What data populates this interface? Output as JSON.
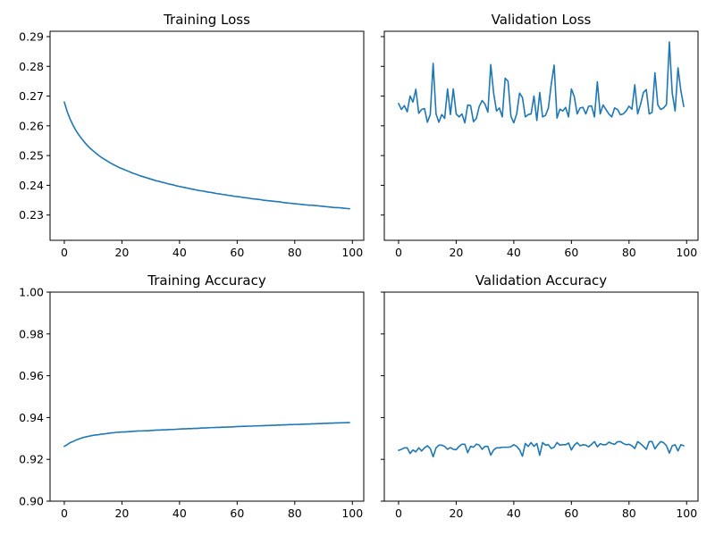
{
  "colors": {
    "line": "#1f77b4",
    "axes": "#000000",
    "background": "#ffffff"
  },
  "chart_data": [
    {
      "type": "line",
      "title": "Training Loss",
      "xlabel": "",
      "ylabel": "",
      "xlim": [
        -4.95,
        103.95
      ],
      "ylim": [
        0.2215,
        0.2918
      ],
      "xticks": [
        0,
        20,
        40,
        60,
        80,
        100
      ],
      "yticks": [
        0.23,
        0.24,
        0.25,
        0.26,
        0.27,
        0.28,
        0.29
      ],
      "grid": false,
      "x": [
        0,
        1,
        2,
        3,
        4,
        5,
        6,
        7,
        8,
        9,
        10,
        11,
        12,
        13,
        14,
        15,
        16,
        17,
        18,
        19,
        20,
        21,
        22,
        23,
        24,
        25,
        26,
        27,
        28,
        29,
        30,
        31,
        32,
        33,
        34,
        35,
        36,
        37,
        38,
        39,
        40,
        41,
        42,
        43,
        44,
        45,
        46,
        47,
        48,
        49,
        50,
        51,
        52,
        53,
        54,
        55,
        56,
        57,
        58,
        59,
        60,
        61,
        62,
        63,
        64,
        65,
        66,
        67,
        68,
        69,
        70,
        71,
        72,
        73,
        74,
        75,
        76,
        77,
        78,
        79,
        80,
        81,
        82,
        83,
        84,
        85,
        86,
        87,
        88,
        89,
        90,
        91,
        92,
        93,
        94,
        95,
        96,
        97,
        98,
        99
      ],
      "series": [
        {
          "values": [
            0.268,
            0.2648,
            0.2623,
            0.2603,
            0.2585,
            0.257,
            0.2557,
            0.2545,
            0.2534,
            0.2524,
            0.2516,
            0.2508,
            0.25,
            0.2493,
            0.2487,
            0.2481,
            0.2475,
            0.247,
            0.2465,
            0.246,
            0.2456,
            0.2452,
            0.2448,
            0.2444,
            0.244,
            0.2437,
            0.2433,
            0.243,
            0.2427,
            0.2424,
            0.2421,
            0.2418,
            0.2415,
            0.2413,
            0.241,
            0.2408,
            0.2405,
            0.2403,
            0.2401,
            0.2398,
            0.2396,
            0.2394,
            0.2392,
            0.239,
            0.2388,
            0.2386,
            0.2384,
            0.2382,
            0.2381,
            0.2379,
            0.2377,
            0.2376,
            0.2374,
            0.2372,
            0.2371,
            0.2369,
            0.2368,
            0.2366,
            0.2365,
            0.2363,
            0.2362,
            0.2361,
            0.2359,
            0.2358,
            0.2357,
            0.2355,
            0.2354,
            0.2353,
            0.2352,
            0.235,
            0.2349,
            0.2348,
            0.2347,
            0.2346,
            0.2345,
            0.2344,
            0.2342,
            0.2341,
            0.234,
            0.2339,
            0.2338,
            0.2337,
            0.2336,
            0.2335,
            0.2334,
            0.2333,
            0.2333,
            0.2332,
            0.2331,
            0.233,
            0.2329,
            0.2328,
            0.2327,
            0.2326,
            0.2325,
            0.2325,
            0.2324,
            0.2323,
            0.2322,
            0.2321
          ]
        }
      ]
    },
    {
      "type": "line",
      "title": "Validation Loss",
      "xlabel": "",
      "ylabel": "",
      "xlim": [
        -4.95,
        103.95
      ],
      "ylim": [
        0.2215,
        0.2918
      ],
      "xticks": [
        0,
        20,
        40,
        60,
        80,
        100
      ],
      "yticks": [
        0.23,
        0.24,
        0.25,
        0.26,
        0.27,
        0.28,
        0.29
      ],
      "grid": false,
      "x": [
        0,
        1,
        2,
        3,
        4,
        5,
        6,
        7,
        8,
        9,
        10,
        11,
        12,
        13,
        14,
        15,
        16,
        17,
        18,
        19,
        20,
        21,
        22,
        23,
        24,
        25,
        26,
        27,
        28,
        29,
        30,
        31,
        32,
        33,
        34,
        35,
        36,
        37,
        38,
        39,
        40,
        41,
        42,
        43,
        44,
        45,
        46,
        47,
        48,
        49,
        50,
        51,
        52,
        53,
        54,
        55,
        56,
        57,
        58,
        59,
        60,
        61,
        62,
        63,
        64,
        65,
        66,
        67,
        68,
        69,
        70,
        71,
        72,
        73,
        74,
        75,
        76,
        77,
        78,
        79,
        80,
        81,
        82,
        83,
        84,
        85,
        86,
        87,
        88,
        89,
        90,
        91,
        92,
        93,
        94,
        95,
        96,
        97,
        98,
        99
      ],
      "series": [
        {
          "values": [
            0.2675,
            0.2655,
            0.2668,
            0.2647,
            0.27,
            0.268,
            0.2723,
            0.2642,
            0.2655,
            0.2658,
            0.2612,
            0.2638,
            0.281,
            0.264,
            0.2612,
            0.2638,
            0.2625,
            0.2724,
            0.2638,
            0.2724,
            0.264,
            0.263,
            0.264,
            0.261,
            0.267,
            0.2668,
            0.2614,
            0.2625,
            0.2665,
            0.2685,
            0.2673,
            0.2646,
            0.2806,
            0.271,
            0.265,
            0.266,
            0.263,
            0.276,
            0.275,
            0.2632,
            0.261,
            0.264,
            0.271,
            0.2695,
            0.263,
            0.2638,
            0.264,
            0.27,
            0.2618,
            0.2712,
            0.263,
            0.2635,
            0.266,
            0.274,
            0.2804,
            0.2626,
            0.2656,
            0.265,
            0.2662,
            0.263,
            0.2724,
            0.2698,
            0.264,
            0.266,
            0.2662,
            0.264,
            0.2666,
            0.2667,
            0.263,
            0.2748,
            0.264,
            0.267,
            0.2655,
            0.264,
            0.263,
            0.266,
            0.2655,
            0.2637,
            0.264,
            0.265,
            0.2666,
            0.2656,
            0.2738,
            0.264,
            0.2672,
            0.2712,
            0.2722,
            0.264,
            0.2645,
            0.2778,
            0.267,
            0.2655,
            0.266,
            0.2672,
            0.2882,
            0.271,
            0.265,
            0.2795,
            0.2718,
            0.2665
          ]
        }
      ]
    },
    {
      "type": "line",
      "title": "Training Accuracy",
      "xlabel": "",
      "ylabel": "",
      "xlim": [
        -4.95,
        103.95
      ],
      "ylim": [
        0.9,
        1.0
      ],
      "xticks": [
        0,
        20,
        40,
        60,
        80,
        100
      ],
      "yticks": [
        0.9,
        0.92,
        0.94,
        0.96,
        0.98,
        1.0
      ],
      "grid": false,
      "x": [
        0,
        1,
        2,
        3,
        4,
        5,
        6,
        7,
        8,
        9,
        10,
        11,
        12,
        13,
        14,
        15,
        16,
        17,
        18,
        19,
        20,
        21,
        22,
        23,
        24,
        25,
        26,
        27,
        28,
        29,
        30,
        31,
        32,
        33,
        34,
        35,
        36,
        37,
        38,
        39,
        40,
        41,
        42,
        43,
        44,
        45,
        46,
        47,
        48,
        49,
        50,
        51,
        52,
        53,
        54,
        55,
        56,
        57,
        58,
        59,
        60,
        61,
        62,
        63,
        64,
        65,
        66,
        67,
        68,
        69,
        70,
        71,
        72,
        73,
        74,
        75,
        76,
        77,
        78,
        79,
        80,
        81,
        82,
        83,
        84,
        85,
        86,
        87,
        88,
        89,
        90,
        91,
        92,
        93,
        94,
        95,
        96,
        97,
        98,
        99
      ],
      "series": [
        {
          "values": [
            0.9262,
            0.927,
            0.928,
            0.9285,
            0.9292,
            0.9297,
            0.9302,
            0.9306,
            0.9309,
            0.9312,
            0.9315,
            0.9317,
            0.9318,
            0.9321,
            0.9322,
            0.9324,
            0.9326,
            0.9327,
            0.9329,
            0.933,
            0.9331,
            0.9331,
            0.9332,
            0.9333,
            0.9334,
            0.9335,
            0.9336,
            0.9336,
            0.9337,
            0.9337,
            0.9338,
            0.9339,
            0.934,
            0.934,
            0.9341,
            0.9341,
            0.9342,
            0.9343,
            0.9343,
            0.9344,
            0.9345,
            0.9346,
            0.9346,
            0.9347,
            0.9347,
            0.9348,
            0.9348,
            0.9349,
            0.935,
            0.935,
            0.9351,
            0.9352,
            0.9352,
            0.9353,
            0.9353,
            0.9354,
            0.9354,
            0.9355,
            0.9355,
            0.9356,
            0.9357,
            0.9357,
            0.9358,
            0.9358,
            0.9359,
            0.9359,
            0.936,
            0.936,
            0.9361,
            0.9361,
            0.9362,
            0.9362,
            0.9363,
            0.9363,
            0.9364,
            0.9364,
            0.9365,
            0.9365,
            0.9366,
            0.9366,
            0.9367,
            0.9367,
            0.9368,
            0.9368,
            0.9369,
            0.9369,
            0.937,
            0.937,
            0.9371,
            0.9371,
            0.9372,
            0.9372,
            0.9373,
            0.9373,
            0.9374,
            0.9374,
            0.9375,
            0.9375,
            0.9376,
            0.9376
          ]
        }
      ]
    },
    {
      "type": "line",
      "title": "Validation Accuracy",
      "xlabel": "",
      "ylabel": "",
      "xlim": [
        -4.95,
        103.95
      ],
      "ylim": [
        0.9,
        1.0
      ],
      "xticks": [
        0,
        20,
        40,
        60,
        80,
        100
      ],
      "yticks": [
        0.9,
        0.92,
        0.94,
        0.96,
        0.98,
        1.0
      ],
      "grid": false,
      "x": [
        0,
        1,
        2,
        3,
        4,
        5,
        6,
        7,
        8,
        9,
        10,
        11,
        12,
        13,
        14,
        15,
        16,
        17,
        18,
        19,
        20,
        21,
        22,
        23,
        24,
        25,
        26,
        27,
        28,
        29,
        30,
        31,
        32,
        33,
        34,
        35,
        36,
        37,
        38,
        39,
        40,
        41,
        42,
        43,
        44,
        45,
        46,
        47,
        48,
        49,
        50,
        51,
        52,
        53,
        54,
        55,
        56,
        57,
        58,
        59,
        60,
        61,
        62,
        63,
        64,
        65,
        66,
        67,
        68,
        69,
        70,
        71,
        72,
        73,
        74,
        75,
        76,
        77,
        78,
        79,
        80,
        81,
        82,
        83,
        84,
        85,
        86,
        87,
        88,
        89,
        90,
        91,
        92,
        93,
        94,
        95,
        96,
        97,
        98,
        99
      ],
      "series": [
        {
          "values": [
            0.9243,
            0.9248,
            0.9255,
            0.9255,
            0.9228,
            0.9245,
            0.9236,
            0.9255,
            0.924,
            0.9255,
            0.9265,
            0.9252,
            0.9212,
            0.9255,
            0.9268,
            0.9268,
            0.9262,
            0.9248,
            0.9256,
            0.9248,
            0.9246,
            0.9262,
            0.9272,
            0.9272,
            0.9232,
            0.9262,
            0.9258,
            0.9273,
            0.9268,
            0.9248,
            0.9262,
            0.9262,
            0.922,
            0.9245,
            0.9255,
            0.9255,
            0.9258,
            0.9258,
            0.9258,
            0.926,
            0.927,
            0.9262,
            0.9246,
            0.9215,
            0.9276,
            0.9262,
            0.928,
            0.9262,
            0.9276,
            0.922,
            0.928,
            0.9268,
            0.927,
            0.9252,
            0.9258,
            0.928,
            0.9268,
            0.927,
            0.927,
            0.9278,
            0.9245,
            0.9268,
            0.928,
            0.9265,
            0.927,
            0.9268,
            0.926,
            0.9272,
            0.9285,
            0.926,
            0.9275,
            0.927,
            0.927,
            0.9282,
            0.9276,
            0.9272,
            0.9284,
            0.9285,
            0.9276,
            0.927,
            0.9272,
            0.9265,
            0.9252,
            0.9285,
            0.9275,
            0.9262,
            0.9248,
            0.9285,
            0.9285,
            0.925,
            0.927,
            0.9285,
            0.928,
            0.9265,
            0.923,
            0.9265,
            0.927,
            0.924,
            0.927,
            0.9265
          ]
        }
      ]
    }
  ]
}
